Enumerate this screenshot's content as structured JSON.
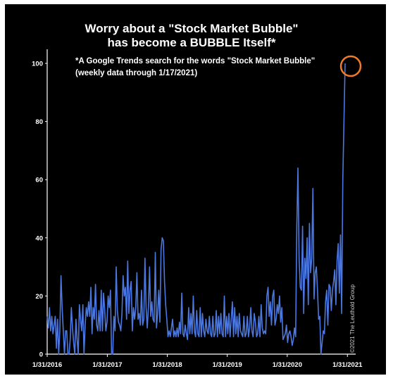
{
  "chart_data": {
    "type": "line",
    "title": [
      "Worry about a \"Stock Market Bubble\"",
      "has become a BUBBLE Itself*"
    ],
    "subtitle": [
      "*A Google Trends search for the words \"Stock Market Bubble\"",
      "(weekly data through 1/17/2021)"
    ],
    "credit": "©2021 The Leuthold Group",
    "ylim": [
      0,
      100
    ],
    "yticks": [
      0,
      20,
      40,
      60,
      80,
      100
    ],
    "xticks": [
      "1/31/2016",
      "1/31/2017",
      "1/31/2018",
      "1/31/2019",
      "1/31/2020",
      "1/31/2021"
    ],
    "x_range": [
      "1/31/2016",
      "1/17/2021"
    ],
    "grid": false,
    "line_color": "#4a78e0",
    "highlight": {
      "date": "1/17/2021",
      "value": 100,
      "color": "#f07c2a",
      "shape": "circle"
    },
    "series": [
      {
        "x_start": "1/31/2016",
        "interval": "weekly",
        "values": [
          13,
          9,
          16,
          8,
          13,
          7,
          10,
          13,
          2,
          12,
          0,
          8,
          27,
          16,
          8,
          0,
          8,
          8,
          0,
          0,
          5,
          16,
          9,
          4,
          0,
          12,
          5,
          0,
          17,
          12,
          8,
          17,
          0,
          10,
          16,
          13,
          18,
          13,
          23,
          7,
          16,
          12,
          24,
          10,
          8,
          15,
          8,
          22,
          8,
          21,
          15,
          8,
          11,
          20,
          16,
          22,
          0,
          0,
          13,
          8,
          30,
          15,
          11,
          10,
          8,
          14,
          27,
          20,
          23,
          12,
          32,
          14,
          22,
          25,
          8,
          16,
          12,
          16,
          28,
          12,
          14,
          10,
          22,
          10,
          12,
          33,
          16,
          9,
          16,
          30,
          13,
          18,
          12,
          11,
          35,
          9,
          14,
          22,
          11,
          36,
          40,
          39,
          25,
          17,
          12,
          6,
          8,
          6,
          9,
          12,
          6,
          8,
          6,
          9,
          6,
          11,
          7,
          21,
          7,
          6,
          10,
          7,
          5,
          16,
          7,
          14,
          7,
          20,
          8,
          6,
          15,
          7,
          6,
          16,
          6,
          14,
          8,
          6,
          12,
          8,
          7,
          13,
          7,
          6,
          13,
          6,
          7,
          15,
          6,
          13,
          7,
          14,
          7,
          6,
          20,
          6,
          13,
          7,
          14,
          6,
          12,
          18,
          6,
          16,
          7,
          13,
          6,
          14,
          8,
          7,
          6,
          13,
          6,
          7,
          13,
          6,
          9,
          16,
          8,
          6,
          14,
          11,
          6,
          7,
          13,
          6,
          17,
          9,
          7,
          8,
          7,
          20,
          23,
          13,
          18,
          10,
          20,
          22,
          10,
          12,
          17,
          14,
          20,
          11,
          16,
          5,
          6,
          7,
          10,
          4,
          7,
          8,
          6,
          3,
          5,
          9,
          6,
          44,
          64,
          33,
          23,
          22,
          44,
          14,
          33,
          26,
          40,
          17,
          45,
          28,
          33,
          57,
          19,
          28,
          30,
          22,
          12,
          13,
          0,
          4,
          8,
          7,
          18,
          22,
          10,
          24,
          23,
          15,
          22,
          25,
          29,
          17,
          32,
          38,
          21,
          41,
          14,
          60,
          100
        ]
      }
    ]
  }
}
